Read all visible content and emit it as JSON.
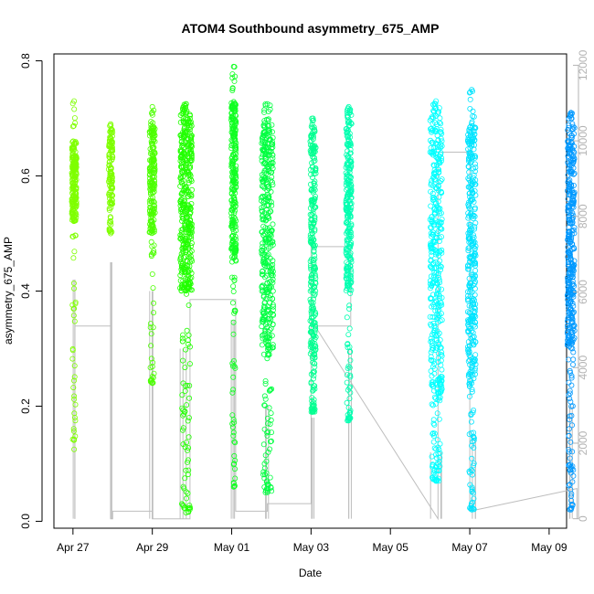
{
  "chart_data": {
    "type": "scatter",
    "title": "ATOM4 Southbound asymmetry_675_AMP",
    "xlabel": "Date",
    "ylabel": "asymmetry_675_AMP",
    "x_unit": "days since Apr 27 00:00",
    "xlim": [
      -0.48,
      12.44
    ],
    "ylim": [
      -0.012,
      0.812
    ],
    "y2lim": [
      -250,
      12300
    ],
    "x_ticks": [
      {
        "value": 0,
        "label": "Apr 27"
      },
      {
        "value": 2,
        "label": "Apr 29"
      },
      {
        "value": 4,
        "label": "May 01"
      },
      {
        "value": 6,
        "label": "May 03"
      },
      {
        "value": 8,
        "label": "May 05"
      },
      {
        "value": 10,
        "label": "May 07"
      },
      {
        "value": 12,
        "label": "May 09"
      }
    ],
    "y_ticks": [
      {
        "value": 0.0,
        "label": "0.0"
      },
      {
        "value": 0.2,
        "label": "0.2"
      },
      {
        "value": 0.4,
        "label": "0.4"
      },
      {
        "value": 0.6,
        "label": "0.6"
      },
      {
        "value": 0.8,
        "label": "0.8"
      }
    ],
    "y2_ticks": [
      {
        "value": 0,
        "label": "0"
      },
      {
        "value": 2000,
        "label": "2000"
      },
      {
        "value": 4000,
        "label": "4000"
      },
      {
        "value": 6000,
        "label": "6000"
      },
      {
        "value": 8000,
        "label": "8000"
      },
      {
        "value": 10000,
        "label": "10000"
      },
      {
        "value": 12000,
        "label": "12000"
      }
    ],
    "clusters": [
      {
        "x": 0.03,
        "width": 0.12,
        "color": "#7FFF00",
        "core": [
          0.52,
          0.66
        ],
        "min": 0.125,
        "max": 0.73,
        "n": 34
      },
      {
        "x": 0.95,
        "width": 0.1,
        "color": "#7FFF00",
        "core": [
          0.55,
          0.68
        ],
        "min": 0.5,
        "max": 0.69,
        "n": 18
      },
      {
        "x": 2.0,
        "width": 0.14,
        "color": "#4CFF00",
        "core": [
          0.5,
          0.69
        ],
        "min": 0.24,
        "max": 0.72,
        "n": 30
      },
      {
        "x": 2.85,
        "width": 0.3,
        "color": "#22FF00",
        "core": [
          0.4,
          0.71
        ],
        "min": 0.015,
        "max": 0.725,
        "n": 62
      },
      {
        "x": 4.05,
        "width": 0.12,
        "color": "#11FF22",
        "core": [
          0.45,
          0.73
        ],
        "min": 0.06,
        "max": 0.79,
        "n": 40
      },
      {
        "x": 4.9,
        "width": 0.3,
        "color": "#00FF40",
        "core": [
          0.3,
          0.69
        ],
        "min": 0.05,
        "max": 0.725,
        "n": 58
      },
      {
        "x": 6.05,
        "width": 0.14,
        "color": "#00FF90",
        "core": [
          0.28,
          0.68
        ],
        "min": 0.19,
        "max": 0.7,
        "n": 40
      },
      {
        "x": 6.95,
        "width": 0.14,
        "color": "#00FFB0",
        "core": [
          0.4,
          0.71
        ],
        "min": 0.175,
        "max": 0.72,
        "n": 40
      },
      {
        "x": 9.15,
        "width": 0.3,
        "color": "#00FFFF",
        "core": [
          0.22,
          0.71
        ],
        "min": 0.07,
        "max": 0.73,
        "n": 60
      },
      {
        "x": 10.05,
        "width": 0.2,
        "color": "#00E4FF",
        "core": [
          0.25,
          0.69
        ],
        "min": 0.02,
        "max": 0.75,
        "n": 50
      },
      {
        "x": 12.55,
        "width": 0.18,
        "color": "#0099FF",
        "core": [
          0.3,
          0.69
        ],
        "min": 0.02,
        "max": 0.71,
        "n": 54
      }
    ],
    "secondary_line": {
      "color": "#bebebe",
      "x": [
        0.05,
        0.05,
        0.95,
        0.95,
        1.0,
        1.0,
        2.0,
        2.0,
        2.95,
        2.95,
        4.1,
        4.1,
        4.9,
        4.9,
        6.0,
        6.0,
        7.0,
        7.0,
        6.1,
        9.2,
        9.2,
        10.0,
        10.0,
        12.7,
        12.7
      ],
      "y": [
        0,
        5100,
        5100,
        0,
        0,
        200,
        200,
        0,
        0,
        5800,
        5800,
        200,
        200,
        400,
        400,
        7200,
        7200,
        5100,
        5100,
        0,
        9700,
        9700,
        200,
        800,
        0
      ]
    }
  }
}
